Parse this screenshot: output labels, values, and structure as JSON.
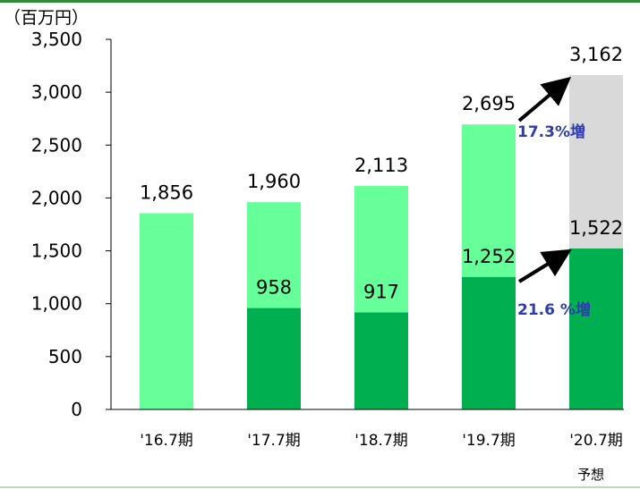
{
  "chart_data": {
    "type": "bar",
    "unit_label": "（百万円）",
    "ylim": [
      0,
      3500
    ],
    "yticks": [
      "0",
      "500",
      "1,000",
      "1,500",
      "2,000",
      "2,500",
      "3,000",
      "3,500"
    ],
    "categories": [
      "'16.7期",
      "'17.7期",
      "'18.7期",
      "'19.7期",
      "'20.7期"
    ],
    "forecast_note": "予想",
    "series": [
      {
        "values": [
          null,
          958,
          917,
          1252,
          1522
        ],
        "labels": [
          "",
          "958",
          "917",
          "1,252",
          "1,522"
        ]
      },
      {
        "values": [
          1856,
          1960,
          2113,
          2695,
          3162
        ],
        "labels": [
          "1,856",
          "1,960",
          "2,113",
          "2,695",
          "3,162"
        ]
      }
    ],
    "annotations": [
      {
        "text": "17.3%増"
      },
      {
        "text": "21.6 %増"
      }
    ],
    "colors": {
      "total_bar": "#66ff99",
      "part_bar": "#00b050",
      "forecast_total_bar": "#d9d9d9",
      "growth_text": "#2e3cb0",
      "arrow": "#000000"
    }
  }
}
